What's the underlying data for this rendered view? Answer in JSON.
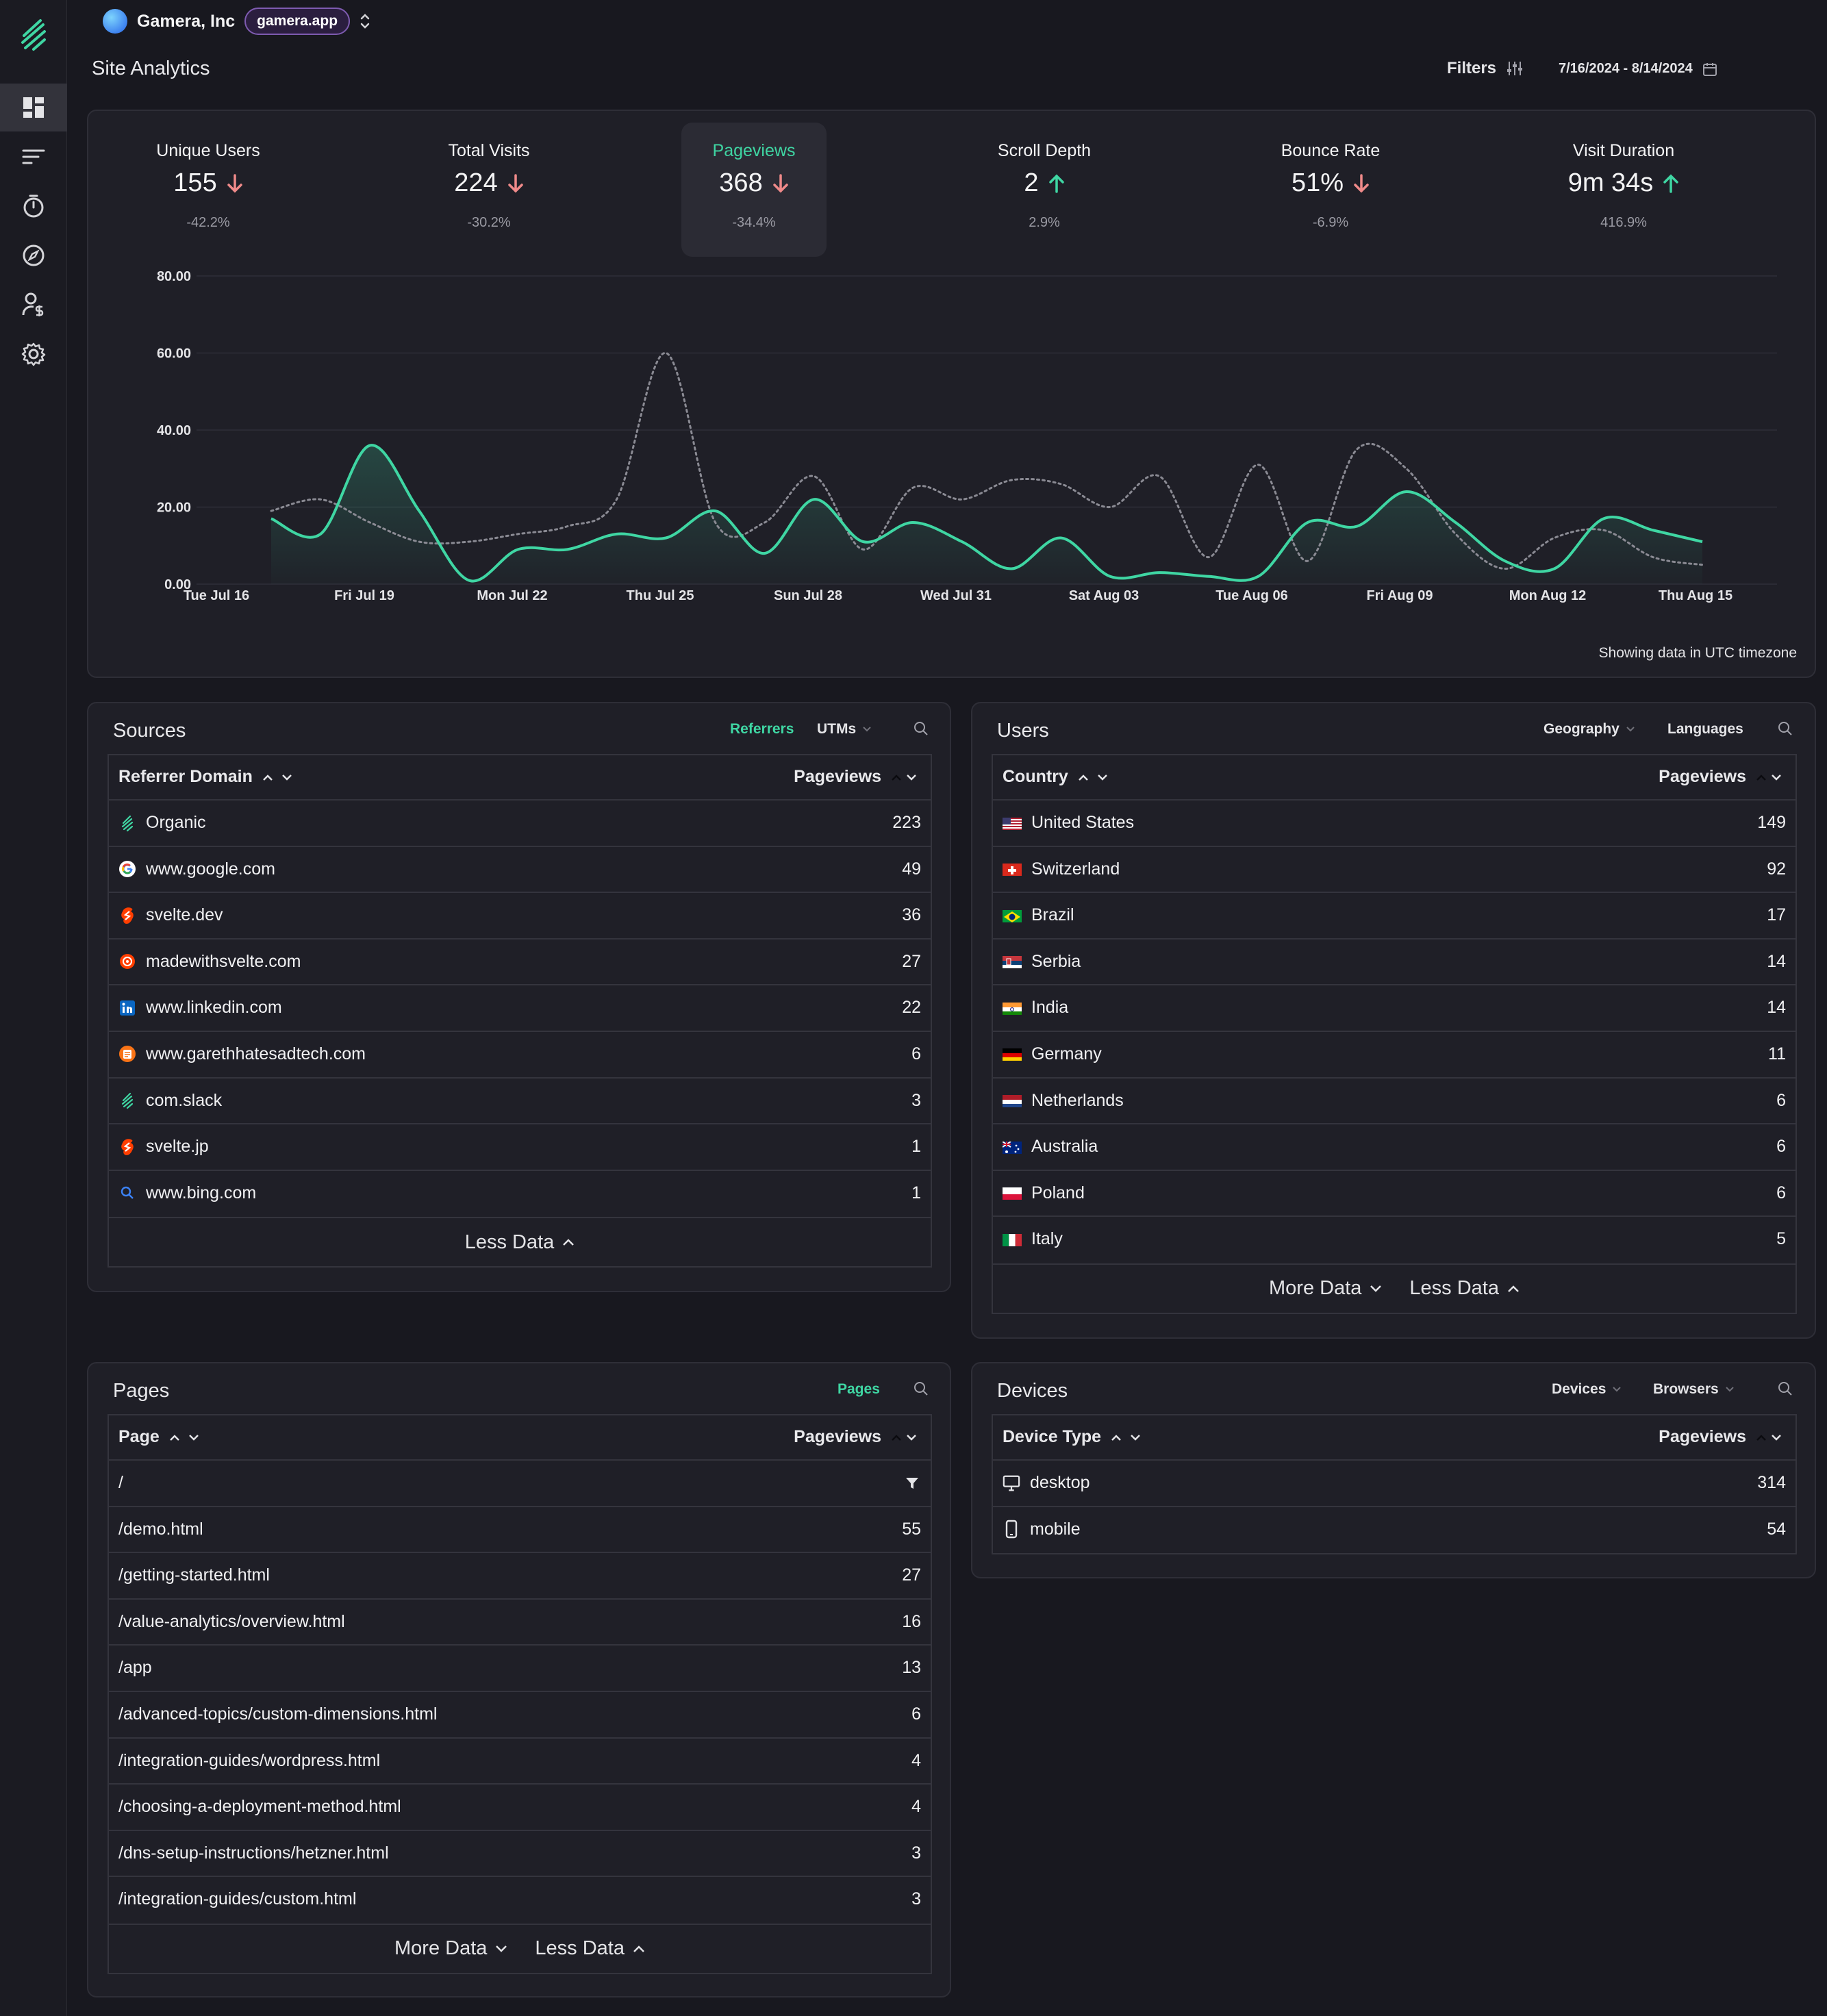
{
  "org": {
    "name": "Gamera, Inc",
    "domain": "gamera.app"
  },
  "page_title": "Site Analytics",
  "filters_label": "Filters",
  "date_range": "7/16/2024 - 8/14/2024",
  "sidebar": {
    "items": [
      "dashboard-icon",
      "sources-icon",
      "timer-icon",
      "compass-icon",
      "user-dollar-icon",
      "settings-icon"
    ]
  },
  "stats": [
    {
      "label": "Unique Users",
      "value": "155",
      "trend": "down",
      "change": "-42.2%"
    },
    {
      "label": "Total Visits",
      "value": "224",
      "trend": "down",
      "change": "-30.2%"
    },
    {
      "label": "Pageviews",
      "value": "368",
      "trend": "down",
      "change": "-34.4%",
      "selected": true
    },
    {
      "label": "Scroll Depth",
      "value": "2",
      "trend": "up",
      "change": "2.9%"
    },
    {
      "label": "Bounce Rate",
      "value": "51%",
      "trend": "down",
      "change": "-6.9%"
    },
    {
      "label": "Visit Duration",
      "value": "9m 34s",
      "trend": "up",
      "change": "416.9%"
    }
  ],
  "colors": {
    "accent": "#3fd6a3",
    "down": "#f08a8a",
    "up": "#3fd6a3",
    "background": "#18181f",
    "card": "#1f1f27"
  },
  "chart_data": {
    "type": "line",
    "x_tick_labels": [
      "Tue Jul 16",
      "Fri Jul 19",
      "Mon Jul 22",
      "Thu Jul 25",
      "Sun Jul 28",
      "Wed Jul 31",
      "Sat Aug 03",
      "Tue Aug 06",
      "Fri Aug 09",
      "Mon Aug 12",
      "Thu Aug 15"
    ],
    "y_tick_labels": [
      "80.00",
      "60.00",
      "40.00",
      "20.00",
      "0.00"
    ],
    "ylim": [
      0,
      80
    ],
    "x": [
      "Jul 16",
      "Jul 17",
      "Jul 18",
      "Jul 19",
      "Jul 20",
      "Jul 21",
      "Jul 22",
      "Jul 23",
      "Jul 24",
      "Jul 25",
      "Jul 26",
      "Jul 27",
      "Jul 28",
      "Jul 29",
      "Jul 30",
      "Jul 31",
      "Aug 01",
      "Aug 02",
      "Aug 03",
      "Aug 04",
      "Aug 05",
      "Aug 06",
      "Aug 07",
      "Aug 08",
      "Aug 09",
      "Aug 10",
      "Aug 11",
      "Aug 12",
      "Aug 13",
      "Aug 14"
    ],
    "series": [
      {
        "values": [
          17,
          13,
          36,
          19,
          1,
          9,
          9,
          13,
          12,
          19,
          8,
          22,
          11,
          16,
          11,
          4,
          12,
          2,
          3,
          2,
          2,
          16,
          15,
          24,
          16,
          6,
          4,
          17,
          14,
          11
        ]
      },
      {
        "values": [
          19,
          22,
          16,
          11,
          11,
          13,
          15,
          22,
          60,
          16,
          16,
          28,
          9,
          25,
          22,
          27,
          26,
          20,
          28,
          7,
          31,
          6,
          35,
          30,
          13,
          4,
          12,
          14,
          7,
          5
        ]
      }
    ],
    "grid": true
  },
  "chart_note": "Showing data in UTC timezone",
  "sources": {
    "title": "Sources",
    "tabs": [
      "Referrers",
      "UTMs"
    ],
    "col_left": "Referrer Domain",
    "col_right": "Pageviews",
    "rows": [
      {
        "icon": "gamera-icon",
        "name": "Organic",
        "value": "223"
      },
      {
        "icon": "google-icon",
        "name": "www.google.com",
        "value": "49"
      },
      {
        "icon": "svelte-icon",
        "name": "svelte.dev",
        "value": "36"
      },
      {
        "icon": "madewithsvelte-icon",
        "name": "madewithsvelte.com",
        "value": "27"
      },
      {
        "icon": "linkedin-icon",
        "name": "www.linkedin.com",
        "value": "22"
      },
      {
        "icon": "blog-icon",
        "name": "www.garethhatesadtech.com",
        "value": "6"
      },
      {
        "icon": "gamera-icon",
        "name": "com.slack",
        "value": "3"
      },
      {
        "icon": "svelte-icon",
        "name": "svelte.jp",
        "value": "1"
      },
      {
        "icon": "bing-search-icon",
        "name": "www.bing.com",
        "value": "1"
      }
    ],
    "less_label": "Less Data"
  },
  "users": {
    "title": "Users",
    "tabs": [
      "Geography",
      "Languages"
    ],
    "col_left": "Country",
    "col_right": "Pageviews",
    "rows": [
      {
        "flag": "us",
        "name": "United States",
        "value": "149"
      },
      {
        "flag": "ch",
        "name": "Switzerland",
        "value": "92"
      },
      {
        "flag": "br",
        "name": "Brazil",
        "value": "17"
      },
      {
        "flag": "rs",
        "name": "Serbia",
        "value": "14"
      },
      {
        "flag": "in",
        "name": "India",
        "value": "14"
      },
      {
        "flag": "de",
        "name": "Germany",
        "value": "11"
      },
      {
        "flag": "nl",
        "name": "Netherlands",
        "value": "6"
      },
      {
        "flag": "au",
        "name": "Australia",
        "value": "6"
      },
      {
        "flag": "pl",
        "name": "Poland",
        "value": "6"
      },
      {
        "flag": "it",
        "name": "Italy",
        "value": "5"
      }
    ],
    "more_label": "More Data",
    "less_label": "Less Data"
  },
  "pages": {
    "title": "Pages",
    "tabs": [
      "Pages"
    ],
    "col_left": "Page",
    "col_right": "Pageviews",
    "rows": [
      {
        "name": "/",
        "value": ""
      },
      {
        "name": "/demo.html",
        "value": "55"
      },
      {
        "name": "/getting-started.html",
        "value": "27"
      },
      {
        "name": "/value-analytics/overview.html",
        "value": "16"
      },
      {
        "name": "/app",
        "value": "13"
      },
      {
        "name": "/advanced-topics/custom-dimensions.html",
        "value": "6"
      },
      {
        "name": "/integration-guides/wordpress.html",
        "value": "4"
      },
      {
        "name": "/choosing-a-deployment-method.html",
        "value": "4"
      },
      {
        "name": "/dns-setup-instructions/hetzner.html",
        "value": "3"
      },
      {
        "name": "/integration-guides/custom.html",
        "value": "3"
      }
    ],
    "more_label": "More Data",
    "less_label": "Less Data"
  },
  "devices": {
    "title": "Devices",
    "tabs": [
      "Devices",
      "Browsers"
    ],
    "col_left": "Device Type",
    "col_right": "Pageviews",
    "rows": [
      {
        "icon": "desktop-icon",
        "name": "desktop",
        "value": "314"
      },
      {
        "icon": "mobile-icon",
        "name": "mobile",
        "value": "54"
      }
    ]
  }
}
